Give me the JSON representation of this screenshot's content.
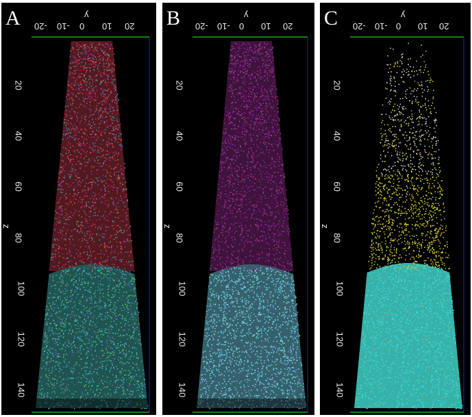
{
  "panels": [
    {
      "id": "A",
      "label": "A",
      "top_color": "#b8374a",
      "bottom_color": "#3fa8a2",
      "point_style": "dense-noisy"
    },
    {
      "id": "B",
      "label": "B",
      "top_color": "#8a2a86",
      "bottom_color": "#6cc2d8",
      "point_style": "dense-fine"
    },
    {
      "id": "C",
      "label": "C",
      "top_color": "#c8c230",
      "bottom_color": "#3fd1c8",
      "point_style": "sparse-top"
    }
  ],
  "axes": {
    "y_label": "y",
    "z_label": "z",
    "y_ticks": [
      "-20",
      "-10",
      "0",
      "10",
      "20"
    ],
    "z_ticks": [
      "20",
      "40",
      "60",
      "80",
      "100",
      "120",
      "140"
    ]
  },
  "colors": {
    "background": "#000000",
    "top_axis": "#1fa81f",
    "side_axis": "#1c2bb0"
  }
}
